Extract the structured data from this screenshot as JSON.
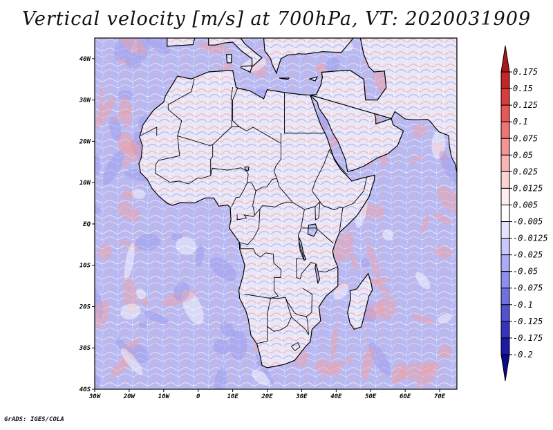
{
  "title": "Vertical velocity [m/s] at 700hPa, VT: 2020031909",
  "credit": "GrADS: IGES/COLA",
  "map": {
    "lon_labels": [
      "30W",
      "20W",
      "10W",
      "0",
      "10E",
      "20E",
      "30E",
      "40E",
      "50E",
      "60E",
      "70E"
    ],
    "lat_labels": [
      "40N",
      "30N",
      "20N",
      "10N",
      "EQ",
      "10S",
      "20S",
      "30S",
      "40S"
    ],
    "lon_range": [
      -30,
      75
    ],
    "lat_range": [
      -40,
      45
    ],
    "ocean_color": "#b8b8f0",
    "land_color": "#e8e8f8",
    "coast_color": "#000000"
  },
  "colorbar": {
    "labels": [
      "0.175",
      "0.15",
      "0.125",
      "0.1",
      "0.075",
      "0.05",
      "0.025",
      "0.0125",
      "0.005",
      "-0.005",
      "-0.0125",
      "-0.025",
      "-0.05",
      "-0.075",
      "-0.1",
      "-0.125",
      "-0.175",
      "-0.2"
    ],
    "colors": [
      "#a81a1a",
      "#c42626",
      "#d83c3c",
      "#e85858",
      "#f07474",
      "#f49494",
      "#f8b4b4",
      "#fcd2d2",
      "#ffeeee",
      "#ffffff",
      "#e4e4ff",
      "#c8c8ff",
      "#ababf6",
      "#8e8eec",
      "#7070e0",
      "#5252d2",
      "#3434c0",
      "#1a1aa4",
      "#0a0a8a"
    ]
  }
}
